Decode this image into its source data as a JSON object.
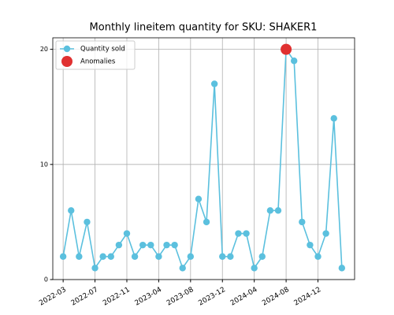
{
  "chart_data": {
    "type": "line",
    "title": "Monthly lineitem quantity for SKU: SHAKER1",
    "x": [
      0,
      1,
      2,
      3,
      4,
      5,
      6,
      7,
      8,
      9,
      10,
      11,
      12,
      13,
      14,
      15,
      16,
      17,
      18,
      19,
      20,
      21,
      22,
      23,
      24,
      25,
      26,
      27,
      28,
      29,
      30,
      31,
      32,
      33,
      34,
      35
    ],
    "series": [
      {
        "name": "Quantity sold",
        "color": "#5bc0de",
        "values": [
          2,
          6,
          2,
          5,
          1,
          2,
          2,
          3,
          4,
          2,
          3,
          3,
          2,
          3,
          3,
          1,
          2,
          7,
          5,
          17,
          2,
          2,
          4,
          4,
          1,
          2,
          6,
          6,
          20,
          19,
          5,
          3,
          2,
          4,
          14,
          1
        ]
      },
      {
        "name": "Anomalies",
        "color": "#e03030",
        "x": [
          28
        ],
        "values": [
          20
        ]
      }
    ],
    "xlim": [
      -1.3,
      36.6
    ],
    "xticks": [
      {
        "value": 0,
        "label": "2022-03"
      },
      {
        "value": 4,
        "label": "2022-07"
      },
      {
        "value": 8,
        "label": "2022-11"
      },
      {
        "value": 12,
        "label": "2023-04"
      },
      {
        "value": 16,
        "label": "2023-08"
      },
      {
        "value": 20,
        "label": "2023-12"
      },
      {
        "value": 24,
        "label": "2024-04"
      },
      {
        "value": 28,
        "label": "2024-08"
      },
      {
        "value": 32,
        "label": "2024-12"
      }
    ],
    "ylim": [
      0,
      21
    ],
    "yticks": [
      0,
      10,
      20
    ],
    "grid": true,
    "legend": "upper left"
  }
}
